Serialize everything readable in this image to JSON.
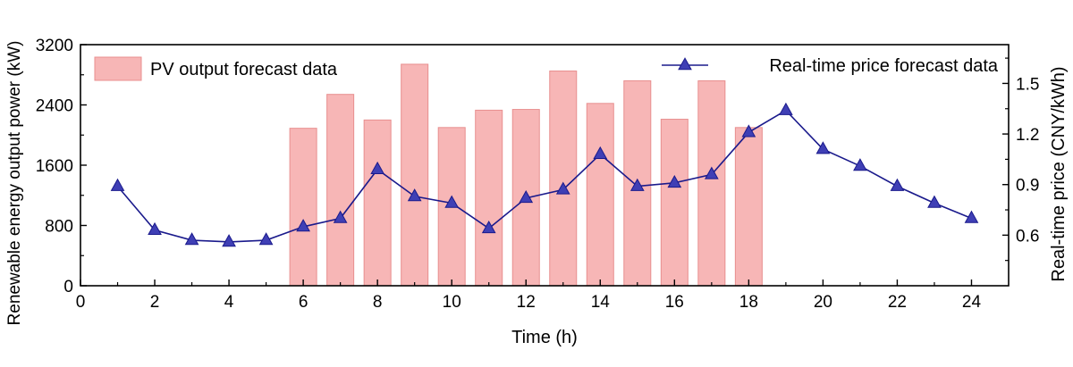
{
  "chart_data": {
    "type": "bar+line",
    "x_axis": {
      "label": "Time (h)",
      "range": [
        0,
        25
      ],
      "ticks": [
        0,
        2,
        4,
        6,
        8,
        10,
        12,
        14,
        16,
        18,
        20,
        22,
        24
      ]
    },
    "y_left": {
      "label": "Renewable energy output power (kW)",
      "range": [
        0,
        3200
      ],
      "ticks": [
        0,
        800,
        1600,
        2400,
        3200
      ]
    },
    "y_right": {
      "label": "Real-time price (CNY/kWh)",
      "range": [
        0.3,
        1.73
      ],
      "ticks": [
        0.6,
        0.9,
        1.2,
        1.5
      ]
    },
    "grid": false,
    "legend": [
      {
        "name": "PV output forecast data",
        "placement": "top-left"
      },
      {
        "name": "Real-time price forecast data",
        "placement": "top-right"
      }
    ],
    "bars": {
      "name": "PV output forecast data",
      "axis": "left",
      "color": "#f7b6b6",
      "edge_color": "#e88f8f",
      "x": [
        6,
        7,
        8,
        9,
        10,
        11,
        12,
        13,
        14,
        15,
        16,
        17,
        18
      ],
      "values": [
        2090,
        2540,
        2200,
        2940,
        2100,
        2330,
        2340,
        2850,
        2420,
        2720,
        2210,
        2720,
        2100
      ]
    },
    "line": {
      "name": "Real-time price forecast data",
      "axis": "right",
      "color": "#1a1a8c",
      "marker_color": "#3f3fb5",
      "x": [
        1,
        2,
        3,
        4,
        5,
        6,
        7,
        8,
        9,
        10,
        11,
        12,
        13,
        14,
        15,
        16,
        17,
        18,
        19,
        20,
        21,
        22,
        23,
        24
      ],
      "values": [
        0.89,
        0.63,
        0.57,
        0.56,
        0.57,
        0.65,
        0.7,
        0.99,
        0.83,
        0.79,
        0.64,
        0.82,
        0.87,
        1.08,
        0.89,
        0.91,
        0.96,
        1.21,
        1.34,
        1.11,
        1.01,
        0.89,
        0.79,
        0.7
      ]
    }
  }
}
